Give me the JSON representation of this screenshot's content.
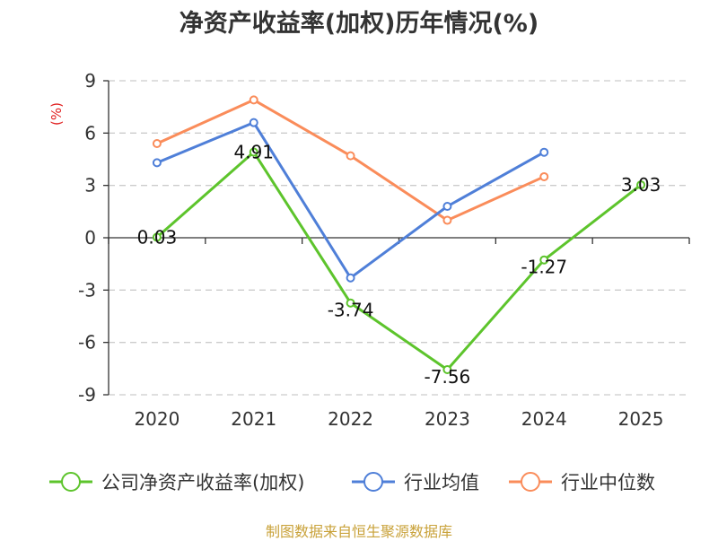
{
  "chart_data": {
    "type": "line",
    "title": "净资产收益率(加权)历年情况(%)",
    "ylabel": "(%)",
    "categories": [
      "2020",
      "2021",
      "2022",
      "2023",
      "2024",
      "2025"
    ],
    "ylim": [
      -9,
      9
    ],
    "yticks": [
      9,
      6,
      3,
      0,
      -3,
      -6,
      -9
    ],
    "grid": true,
    "legend_position": "bottom",
    "series": [
      {
        "name": "公司净资产收益率(加权)",
        "color": "#5dc42c",
        "values": [
          0.03,
          4.91,
          -3.74,
          -7.56,
          -1.27,
          3.03
        ],
        "labels": [
          "0.03",
          "4.91",
          "-3.74",
          "-7.56",
          "-1.27",
          "3.03"
        ]
      },
      {
        "name": "行业均值",
        "color": "#4f7fd8",
        "values": [
          4.3,
          6.6,
          -2.3,
          1.8,
          4.9,
          null
        ]
      },
      {
        "name": "行业中位数",
        "color": "#fa8c5a",
        "values": [
          5.4,
          7.9,
          4.7,
          1.0,
          3.5,
          null
        ]
      }
    ]
  },
  "watermark": "制图数据来自恒生聚源数据库"
}
